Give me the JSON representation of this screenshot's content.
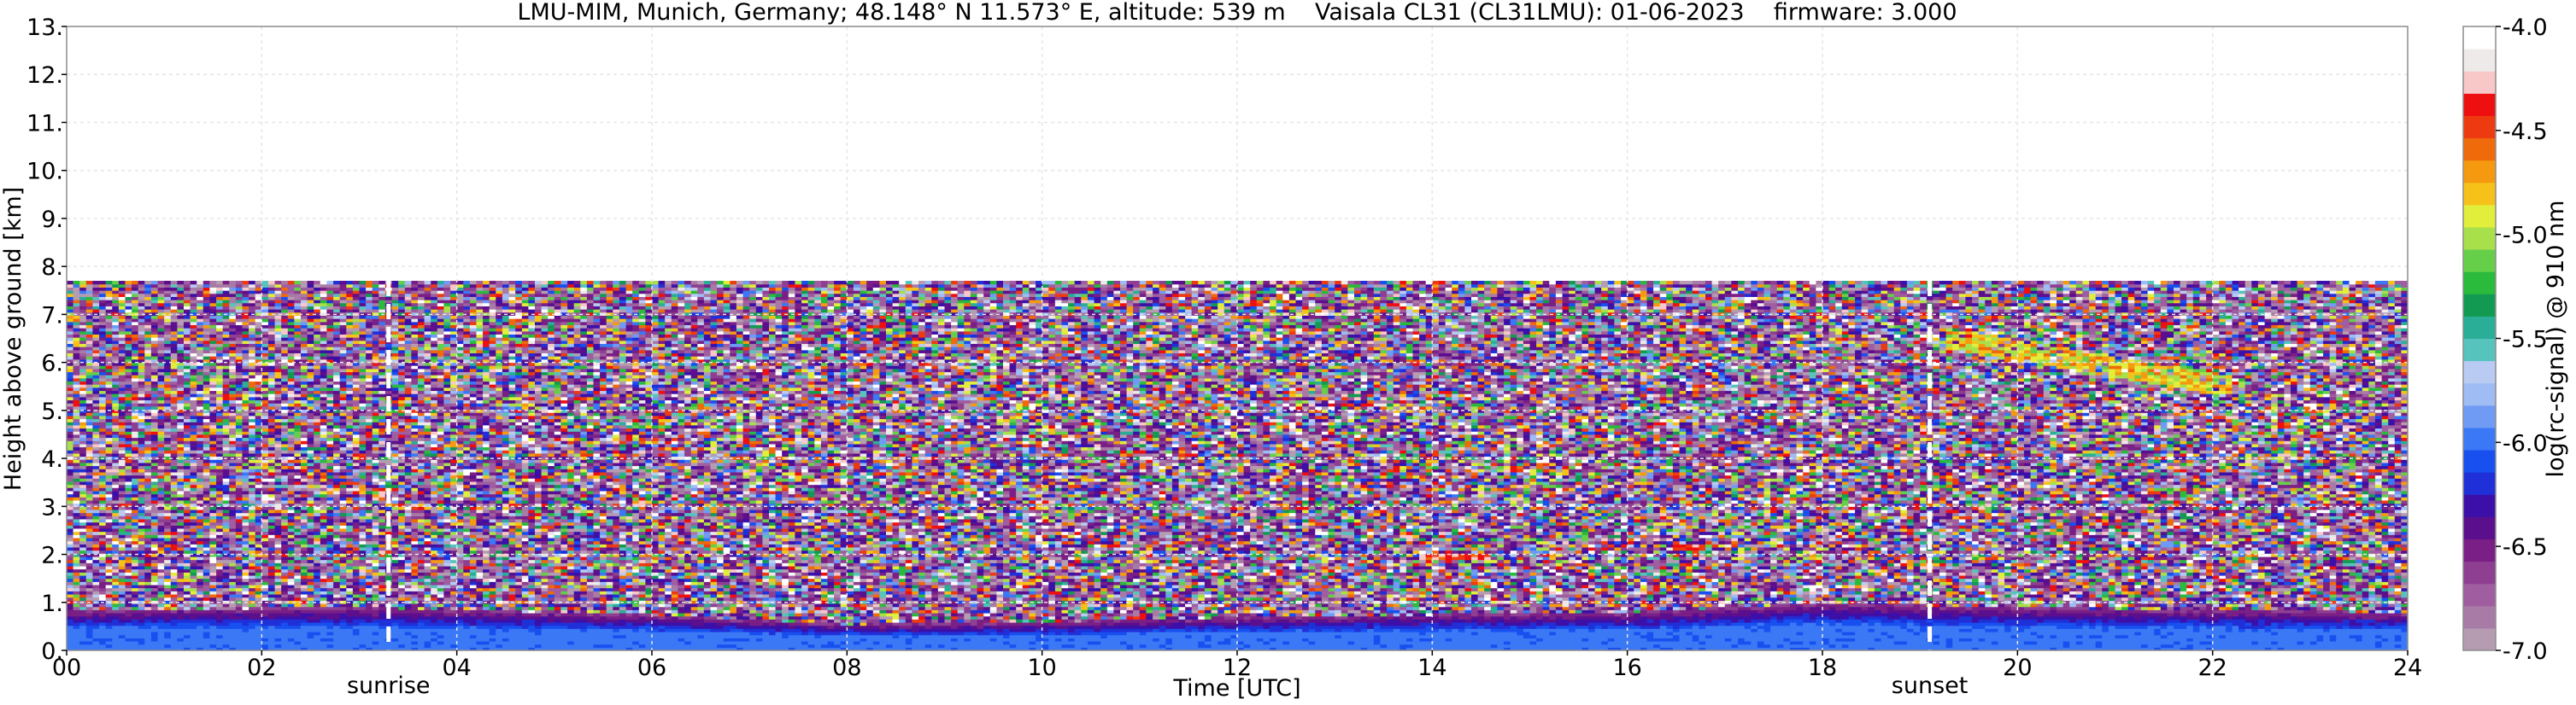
{
  "chart_data": {
    "type": "heatmap",
    "title": "LMU-MIM, Munich, Germany; 48.148° N 11.573° E, altitude: 539 m    Vaisala CL31 (CL31LMU): 01-06-2023    firmware: 3.000",
    "xlabel": "Time [UTC]",
    "ylabel": "Height above ground [km]",
    "xlim": [
      0,
      24
    ],
    "ylim": [
      0,
      13
    ],
    "x_ticks": [
      "00",
      "02",
      "04",
      "06",
      "08",
      "10",
      "12",
      "14",
      "16",
      "18",
      "20",
      "22",
      "24"
    ],
    "y_ticks": [
      "0.",
      "1.",
      "2.",
      "3.",
      "4.",
      "5.",
      "6.",
      "7.",
      "8.",
      "9.",
      "10.",
      "11.",
      "12.",
      "13."
    ],
    "grid": true,
    "data_top_km": 7.7,
    "markers": [
      {
        "label": "sunrise",
        "time_utc": 3.3
      },
      {
        "label": "sunset",
        "time_utc": 19.1
      }
    ],
    "features": {
      "boundary_layer_top_km": [
        {
          "t": 0,
          "h": 0.85
        },
        {
          "t": 3,
          "h": 0.9
        },
        {
          "t": 6,
          "h": 0.75
        },
        {
          "t": 8,
          "h": 0.55
        },
        {
          "t": 10,
          "h": 0.6
        },
        {
          "t": 12,
          "h": 0.7
        },
        {
          "t": 14,
          "h": 0.75
        },
        {
          "t": 16,
          "h": 0.8
        },
        {
          "t": 18,
          "h": 1.0
        },
        {
          "t": 20,
          "h": 0.9
        },
        {
          "t": 22,
          "h": 0.85
        },
        {
          "t": 24,
          "h": 0.8
        }
      ],
      "cloud_layers": [
        {
          "t_start": 13.9,
          "t_end": 14.6,
          "h_km": 1.95,
          "level": -4.4
        },
        {
          "t_start": 16.5,
          "t_end": 16.8,
          "h_km": 2.15,
          "level": -4.4
        },
        {
          "t_start": 19.3,
          "t_end": 22.2,
          "h_top_km": 6.5,
          "h_bottom_km": 5.5,
          "level": -5.0
        }
      ]
    },
    "colorbar": {
      "label": "log(rc-signal) @ 910 nm",
      "range": [
        -7.0,
        -4.0
      ],
      "tick_values": [
        -4.0,
        -4.5,
        -5.0,
        -5.5,
        -6.0,
        -6.5,
        -7.0
      ],
      "tick_labels": [
        "-4.0",
        "-4.5",
        "-5.0",
        "-5.5",
        "-6.0",
        "-6.5",
        "-7.0"
      ],
      "colors": [
        "#b59cb1",
        "#a87ba6",
        "#a05da0",
        "#8e3f91",
        "#7a1f86",
        "#5c0f8c",
        "#3c10a8",
        "#2030d8",
        "#1850f0",
        "#3a78f5",
        "#6f9bf5",
        "#9fbcf4",
        "#b9cbf2",
        "#56c4bd",
        "#2aae97",
        "#139a52",
        "#2aba3c",
        "#66cf4a",
        "#a8e04c",
        "#e2ee3c",
        "#f6c21a",
        "#f59a10",
        "#ee6a0a",
        "#ee3a10",
        "#ee1010",
        "#f8c8c8",
        "#eeeaea",
        "#ffffff"
      ]
    }
  }
}
